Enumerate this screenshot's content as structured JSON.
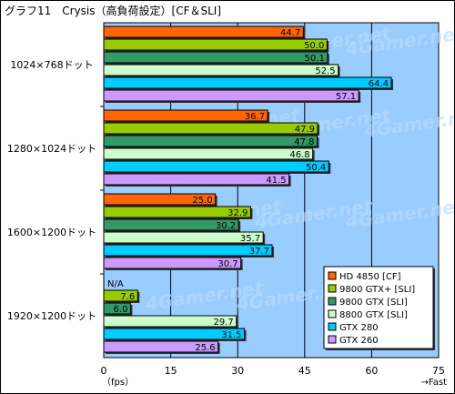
{
  "chart_data": {
    "type": "bar",
    "orientation": "horizontal",
    "title": "グラフ11　Crysis（高負荷設定）[CF＆SLI]",
    "categories": [
      "1024×768ドット",
      "1280×1024ドット",
      "1600×1200ドット",
      "1920×1200ドット"
    ],
    "series": [
      {
        "name": "HD 4850 [CF]",
        "color": "#ff6600",
        "values": [
          44.7,
          36.7,
          25.0,
          null
        ],
        "labels": [
          "44.7",
          "36.7",
          "25.0",
          "N/A"
        ]
      },
      {
        "name": "9800 GTX+ [SLI]",
        "color": "#99cc00",
        "values": [
          50.0,
          47.9,
          32.9,
          7.6
        ],
        "labels": [
          "50.0",
          "47.9",
          "32.9",
          "7.6"
        ]
      },
      {
        "name": "9800 GTX [SLI]",
        "color": "#339966",
        "values": [
          50.1,
          47.8,
          30.2,
          6.0
        ],
        "labels": [
          "50.1",
          "47.8",
          "30.2",
          "6.0"
        ]
      },
      {
        "name": "8800 GTX [SLI]",
        "color": "#ccffcc",
        "values": [
          52.5,
          46.8,
          35.7,
          29.7
        ],
        "labels": [
          "52.5",
          "46.8",
          "35.7",
          "29.7"
        ]
      },
      {
        "name": "GTX 280",
        "color": "#00ccff",
        "values": [
          64.4,
          50.4,
          37.7,
          31.5
        ],
        "labels": [
          "64.4",
          "50.4",
          "37.7",
          "31.5"
        ]
      },
      {
        "name": "GTX 260",
        "color": "#cc99ff",
        "values": [
          57.1,
          41.5,
          30.7,
          25.6
        ],
        "labels": [
          "57.1",
          "41.5",
          "30.7",
          "25.6"
        ]
      }
    ],
    "xlim": [
      0,
      75
    ],
    "xticks": [
      "0",
      "15",
      "30",
      "45",
      "60",
      "75"
    ],
    "xlabel": "（fps）",
    "x_note": "→Fast",
    "grid": true,
    "legend_position": "bottom-right",
    "watermark": "4Gamer.net",
    "colors": {
      "plot_background": "#99ccff",
      "label_background": "#ffffff"
    }
  }
}
